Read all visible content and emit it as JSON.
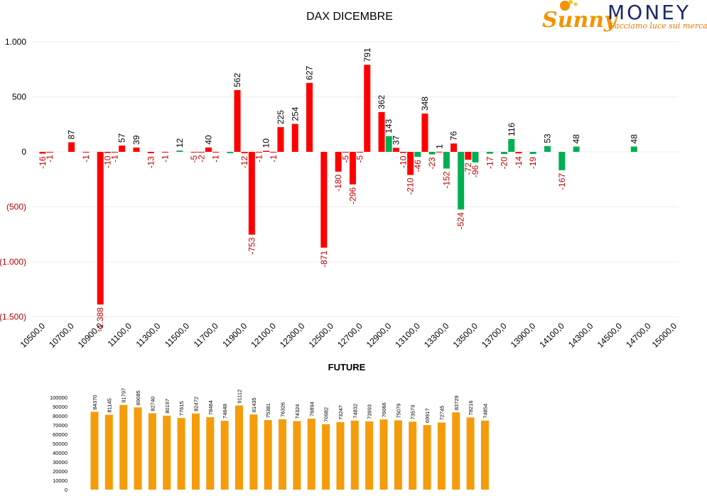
{
  "logo": {
    "word1": "Sunny",
    "word2": "MONEY",
    "tagline": "Facciamo luce sui mercati",
    "colors": {
      "sunny": "#f29400",
      "money": "#1d2a6b",
      "tagline": "#e07b00"
    }
  },
  "colors": {
    "positive": "#ff0000",
    "negative": "#00b050",
    "future_bar": "#f59c0b",
    "neg_label": "#c00000",
    "text": "#000000",
    "grid": "#ececec"
  },
  "chart_data": [
    {
      "type": "bar",
      "title": "DAX DICEMBRE",
      "ylim": [
        -1500,
        1000
      ],
      "y_ticks": [
        {
          "value": 1000,
          "label": "1.000"
        },
        {
          "value": 500,
          "label": "500"
        },
        {
          "value": 0,
          "label": "0"
        },
        {
          "value": -500,
          "label": "(500)"
        },
        {
          "value": -1000,
          "label": "(1.000)"
        },
        {
          "value": -1500,
          "label": "(1.500)"
        }
      ],
      "x_tick_labels": [
        "10500,0",
        "10700,0",
        "10900,0",
        "11100,0",
        "11300,0",
        "11500,0",
        "11700,0",
        "11900,0",
        "12100,0",
        "12300,0",
        "12500,0",
        "12700,0",
        "12900,0",
        "13100,0",
        "13300,0",
        "13500,0",
        "13700,0",
        "13900,0",
        "14100,0",
        "14300,0",
        "14500,0",
        "14700,0",
        "15000,0"
      ],
      "grid": true,
      "series": [
        {
          "color": "#ff0000",
          "points": [
            {
              "x": 10500,
              "value": -16,
              "label": "-16"
            },
            {
              "x": 10550,
              "value": -1,
              "label": "-1"
            },
            {
              "x": 10700,
              "value": 87,
              "label": "87"
            },
            {
              "x": 10800,
              "value": -1,
              "label": "-1"
            },
            {
              "x": 10900,
              "value": -1388,
              "label": "-1.388"
            },
            {
              "x": 10950,
              "value": -10,
              "label": "-10"
            },
            {
              "x": 11000,
              "value": -1,
              "label": "-1"
            },
            {
              "x": 11050,
              "value": 57,
              "label": "57"
            },
            {
              "x": 11150,
              "value": 39,
              "label": "39"
            },
            {
              "x": 11250,
              "value": -13,
              "label": "-13"
            },
            {
              "x": 11350,
              "value": -1,
              "label": "-1"
            },
            {
              "x": 11550,
              "value": -5,
              "label": "-5"
            },
            {
              "x": 11600,
              "value": -2,
              "label": "-2"
            },
            {
              "x": 11650,
              "value": 40,
              "label": "40"
            },
            {
              "x": 11700,
              "value": -1,
              "label": "-1"
            },
            {
              "x": 11850,
              "value": 562,
              "label": "562"
            },
            {
              "x": 11900,
              "value": -12,
              "label": "-12"
            },
            {
              "x": 11950,
              "value": -753,
              "label": "-753"
            },
            {
              "x": 12000,
              "value": -1,
              "label": "-1"
            },
            {
              "x": 12050,
              "value": 10,
              "label": "10"
            },
            {
              "x": 12100,
              "value": -1,
              "label": "-1"
            },
            {
              "x": 12150,
              "value": 225,
              "label": "225"
            },
            {
              "x": 12250,
              "value": 254,
              "label": "254"
            },
            {
              "x": 12350,
              "value": 627,
              "label": "627"
            },
            {
              "x": 12450,
              "value": -871,
              "label": "-871"
            },
            {
              "x": 12550,
              "value": -180,
              "label": "-180"
            },
            {
              "x": 12600,
              "value": -5,
              "label": "-5"
            },
            {
              "x": 12650,
              "value": -296,
              "label": "-296"
            },
            {
              "x": 12700,
              "value": -5,
              "label": "-5"
            },
            {
              "x": 12750,
              "value": 791,
              "label": "791"
            },
            {
              "x": 12850,
              "value": 362,
              "label": "362"
            },
            {
              "x": 12950,
              "value": 37,
              "label": "37"
            },
            {
              "x": 13000,
              "value": -10,
              "label": "-10"
            },
            {
              "x": 13050,
              "value": -210,
              "label": "-210"
            },
            {
              "x": 13150,
              "value": 348,
              "label": "348"
            },
            {
              "x": 13250,
              "value": 1,
              "label": "1"
            },
            {
              "x": 13350,
              "value": 76,
              "label": "76"
            },
            {
              "x": 13450,
              "value": -72,
              "label": "-72"
            },
            {
              "x": 13800,
              "value": -14,
              "label": "-14"
            }
          ]
        },
        {
          "color": "#00b050",
          "points": [
            {
              "x": 11450,
              "value": 12,
              "label": "12"
            },
            {
              "x": 11800,
              "value": -12,
              "label": ""
            },
            {
              "x": 12900,
              "value": 143,
              "label": "143"
            },
            {
              "x": 13100,
              "value": -46,
              "label": "-46"
            },
            {
              "x": 13200,
              "value": -23,
              "label": "-23"
            },
            {
              "x": 13300,
              "value": -152,
              "label": "-152"
            },
            {
              "x": 13400,
              "value": -524,
              "label": "-524"
            },
            {
              "x": 13500,
              "value": -96,
              "label": "-96"
            },
            {
              "x": 13600,
              "value": -17,
              "label": "-17"
            },
            {
              "x": 13700,
              "value": -20,
              "label": "-20"
            },
            {
              "x": 13750,
              "value": 116,
              "label": "116"
            },
            {
              "x": 13900,
              "value": -19,
              "label": "-19"
            },
            {
              "x": 14000,
              "value": 53,
              "label": "53"
            },
            {
              "x": 14100,
              "value": -167,
              "label": "-167"
            },
            {
              "x": 14200,
              "value": 48,
              "label": "48"
            },
            {
              "x": 14600,
              "value": 48,
              "label": "48"
            }
          ]
        }
      ]
    },
    {
      "type": "bar",
      "title": "FUTURE",
      "ylim": [
        0,
        100000
      ],
      "y_ticks": [
        0,
        10000,
        20000,
        30000,
        40000,
        50000,
        60000,
        70000,
        80000,
        90000,
        100000
      ],
      "y_tick_labels": [
        "0",
        "10000",
        "20000",
        "30000",
        "40000",
        "50000",
        "60000",
        "70000",
        "80000",
        "90000",
        "100000"
      ],
      "values": [
        84370,
        81145,
        91797,
        89085,
        82740,
        80197,
        77615,
        82472,
        78464,
        74648,
        91112,
        81435,
        75381,
        76326,
        74324,
        76894,
        70982,
        73247,
        74832,
        73993,
        76066,
        75079,
        73579,
        69917,
        72745,
        83729,
        78216,
        74854
      ],
      "value_labels": [
        "84370",
        "81145",
        "91797",
        "89085",
        "82740",
        "80197",
        "77615",
        "82472",
        "78464",
        "74648",
        "91112",
        "81435",
        "75381",
        "76326",
        "74324",
        "76894",
        "70982",
        "73247",
        "74832",
        "73993",
        "76066",
        "75079",
        "73579",
        "69917",
        "72745",
        "83729",
        "78216",
        "74854"
      ]
    }
  ]
}
